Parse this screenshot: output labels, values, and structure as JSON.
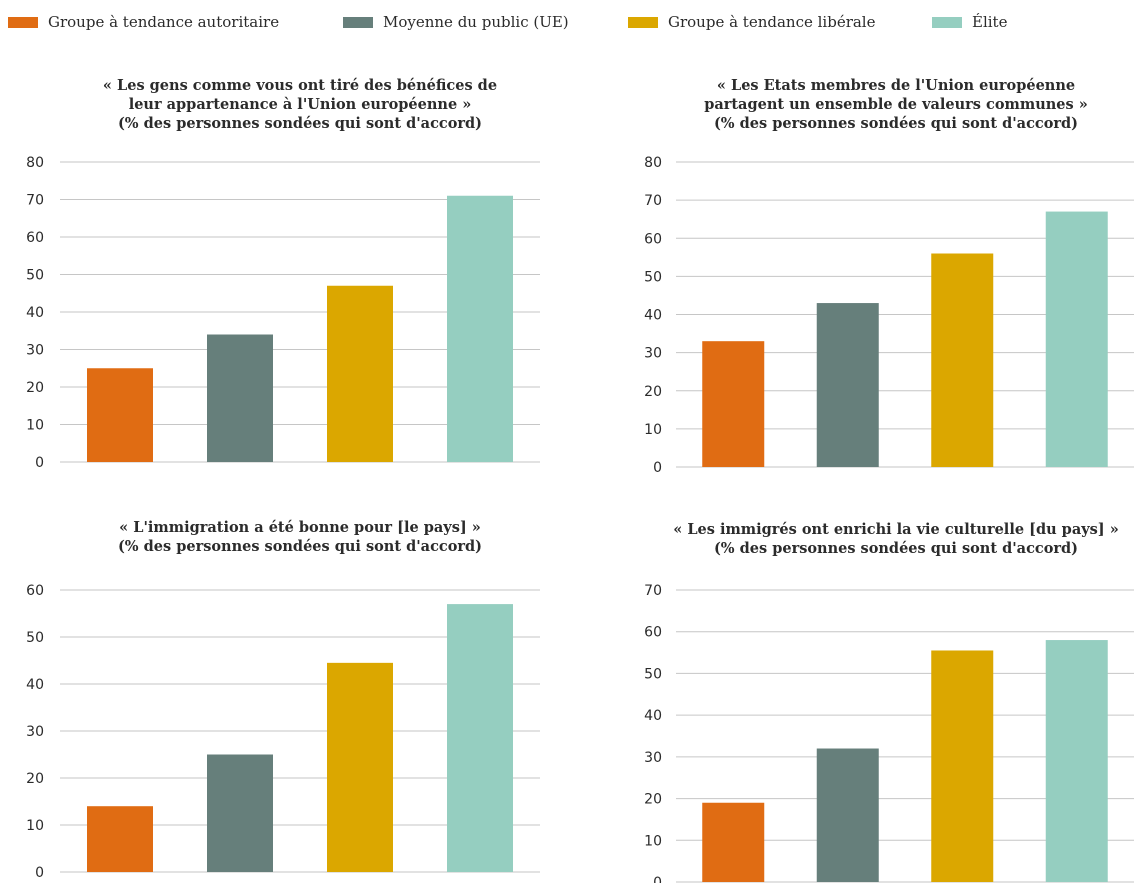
{
  "legend": {
    "items": [
      {
        "label": "Groupe à tendance autoritaire",
        "color": "#e06c13"
      },
      {
        "label": "Moyenne du public (UE)",
        "color": "#667f7b"
      },
      {
        "label": "Groupe à tendance libérale",
        "color": "#dba700"
      },
      {
        "label": "Élite",
        "color": "#95cec0"
      }
    ]
  },
  "chart_data": [
    {
      "type": "bar",
      "title": "« Les gens comme vous ont tiré des bénéfices de\nleur appartenance à l'Union européenne »\n(% des personnes sondées qui sont d'accord)",
      "categories": [
        "Groupe à tendance autoritaire",
        "Moyenne du public (UE)",
        "Groupe à tendance libérale",
        "Élite"
      ],
      "values": [
        25,
        34,
        47,
        71
      ],
      "ylim": [
        0,
        80
      ],
      "yticks": [
        0,
        10,
        20,
        30,
        40,
        50,
        60,
        70,
        80
      ],
      "grid": true
    },
    {
      "type": "bar",
      "title": "« Les Etats membres de l'Union européenne\npartagent un ensemble de valeurs communes »\n(% des personnes sondées qui sont d'accord)",
      "categories": [
        "Groupe à tendance autoritaire",
        "Moyenne du public (UE)",
        "Groupe à tendance libérale",
        "Élite"
      ],
      "values": [
        33,
        43,
        56,
        67
      ],
      "ylim": [
        0,
        80
      ],
      "yticks": [
        0,
        10,
        20,
        30,
        40,
        50,
        60,
        70,
        80
      ],
      "grid": true
    },
    {
      "type": "bar",
      "title": "« L'immigration a été bonne pour [le pays] »\n(% des personnes sondées qui sont d'accord)",
      "categories": [
        "Groupe à tendance autoritaire",
        "Moyenne du public (UE)",
        "Groupe à tendance libérale",
        "Élite"
      ],
      "values": [
        14,
        25,
        44.5,
        57
      ],
      "ylim": [
        0,
        60
      ],
      "yticks": [
        0,
        10,
        20,
        30,
        40,
        50,
        60
      ],
      "grid": true
    },
    {
      "type": "bar",
      "title": "« Les immigrés ont enrichi la vie culturelle [du pays] »\n(% des personnes sondées qui sont d'accord)",
      "categories": [
        "Groupe à tendance autoritaire",
        "Moyenne du public (UE)",
        "Groupe à tendance libérale",
        "Élite"
      ],
      "values": [
        19,
        32,
        55.5,
        58
      ],
      "ylim": [
        0,
        70
      ],
      "yticks": [
        0,
        10,
        20,
        30,
        40,
        50,
        60,
        70
      ],
      "grid": true
    }
  ]
}
